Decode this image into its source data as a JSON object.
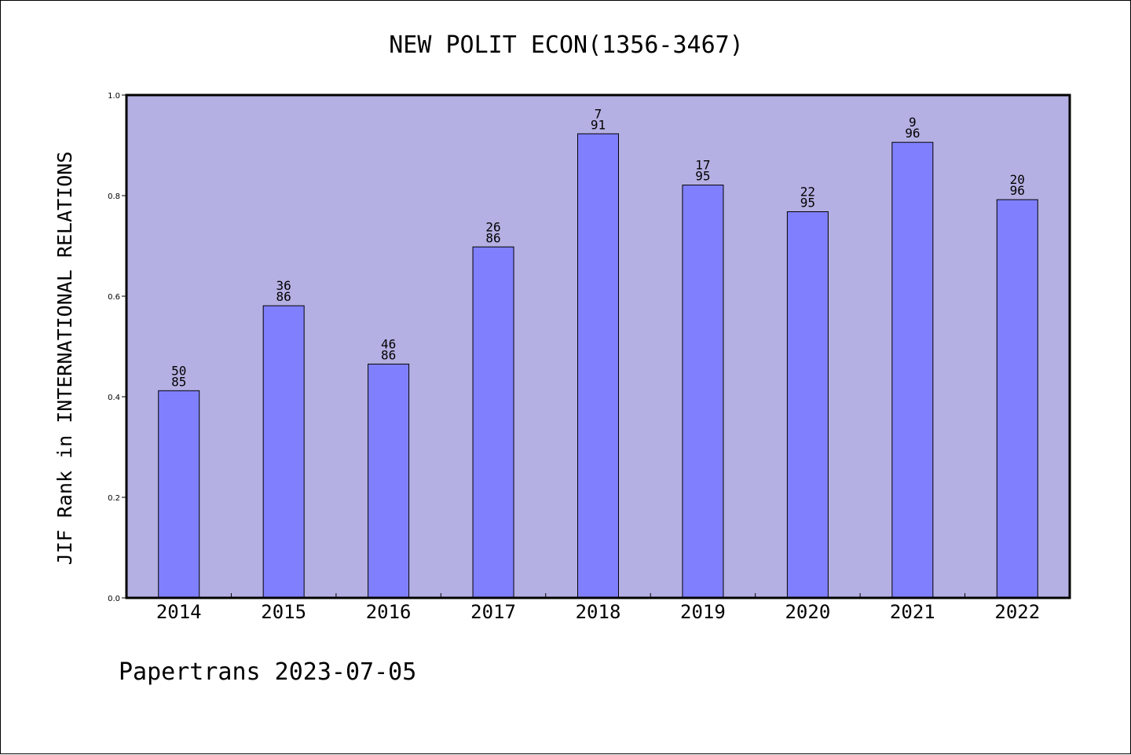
{
  "chart_data": {
    "type": "bar",
    "title": "NEW POLIT ECON(1356-3467)",
    "ylabel": "JIF Rank in INTERNATIONAL RELATIONS",
    "xlabel": "",
    "categories": [
      "2014",
      "2015",
      "2016",
      "2017",
      "2018",
      "2019",
      "2020",
      "2021",
      "2022"
    ],
    "values": [
      0.412,
      0.581,
      0.465,
      0.698,
      0.923,
      0.821,
      0.768,
      0.906,
      0.792
    ],
    "rank": [
      "50",
      "36",
      "46",
      "26",
      "7",
      "17",
      "22",
      "9",
      "20"
    ],
    "total": [
      "85",
      "86",
      "86",
      "86",
      "91",
      "95",
      "95",
      "96",
      "96"
    ],
    "yticks": [
      "0.0",
      "0.2",
      "0.4",
      "0.6",
      "0.8",
      "1.0"
    ],
    "ylim": [
      0,
      1
    ],
    "grid": false,
    "colors": {
      "plot_bg": "#b5b0e3",
      "bar": "#8080ff",
      "bar_edge": "#000000"
    }
  },
  "footer": "Papertrans 2023-07-05"
}
